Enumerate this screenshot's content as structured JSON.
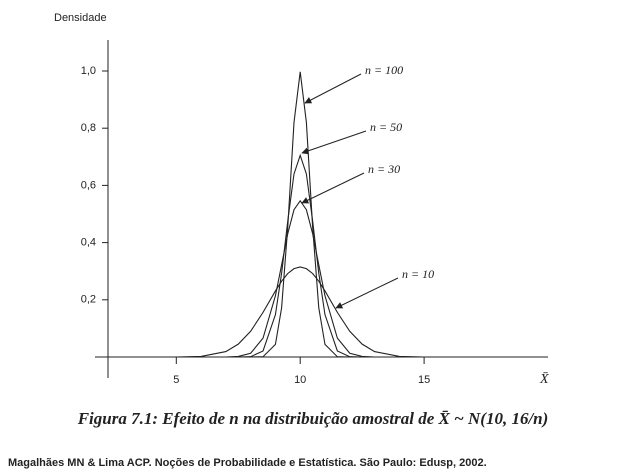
{
  "chart_data": {
    "type": "line",
    "y_label": "Densidade",
    "x_label": "X̄",
    "caption": "Figura 7.1: Efeito de n na distribuição amostral de X̄ ~ N(10, 16/n)",
    "source": "Magalhães MN & Lima ACP.  Noções de  Probabilidade e Estatística. São Paulo: Edusp, 2002.",
    "x": [
      2,
      3,
      5,
      6,
      7,
      7.5,
      8,
      8.5,
      9,
      9.25,
      9.5,
      9.75,
      10,
      10.25,
      10.5,
      10.75,
      11,
      11.5,
      12,
      12.5,
      13,
      14,
      15,
      17,
      19
    ],
    "series": [
      {
        "name": "n = 100",
        "color": "#222222",
        "values": [
          0,
          0,
          0,
          0,
          0,
          0,
          0,
          0.001,
          0.044,
          0.172,
          0.457,
          0.82,
          0.997,
          0.82,
          0.457,
          0.172,
          0.044,
          0.001,
          0,
          0,
          0,
          0,
          0,
          0,
          0
        ]
      },
      {
        "name": "n = 50",
        "color": "#222222",
        "values": [
          0,
          0,
          0,
          0,
          0,
          0,
          0.001,
          0.021,
          0.148,
          0.293,
          0.477,
          0.64,
          0.705,
          0.64,
          0.477,
          0.293,
          0.148,
          0.021,
          0.001,
          0,
          0,
          0,
          0,
          0,
          0
        ]
      },
      {
        "name": "n = 30",
        "color": "#222222",
        "values": [
          0,
          0,
          0,
          0,
          0,
          0.002,
          0.013,
          0.066,
          0.214,
          0.322,
          0.432,
          0.515,
          0.546,
          0.515,
          0.432,
          0.322,
          0.214,
          0.066,
          0.013,
          0.002,
          0,
          0,
          0,
          0,
          0
        ]
      },
      {
        "name": "n = 10",
        "color": "#222222",
        "values": [
          0,
          0,
          0,
          0.002,
          0.019,
          0.045,
          0.09,
          0.156,
          0.231,
          0.265,
          0.292,
          0.309,
          0.315,
          0.309,
          0.292,
          0.265,
          0.231,
          0.156,
          0.09,
          0.045,
          0.019,
          0.002,
          0,
          0,
          0
        ]
      }
    ],
    "xlim": [
      1.8,
      20
    ],
    "ylim": [
      0,
      1.1
    ],
    "xticks": [
      5,
      10,
      15
    ],
    "yticks": [
      {
        "value": 0.2,
        "label": "0,2"
      },
      {
        "value": 0.4,
        "label": "0,4"
      },
      {
        "value": 0.6,
        "label": "0,6"
      },
      {
        "value": 0.8,
        "label": "0,8"
      },
      {
        "value": 1.0,
        "label": "1,0"
      }
    ],
    "grid": false
  }
}
